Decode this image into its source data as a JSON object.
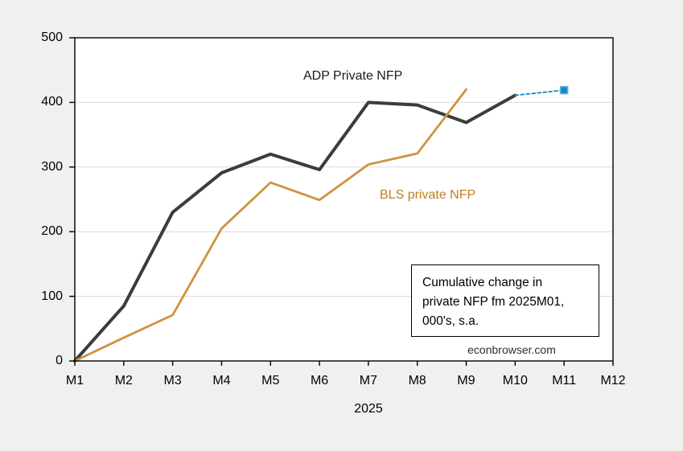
{
  "chart_data": {
    "type": "line",
    "x": [
      "M1",
      "M2",
      "M3",
      "M4",
      "M5",
      "M6",
      "M7",
      "M8",
      "M9",
      "M10",
      "M11",
      "M12"
    ],
    "xlabel": "2025",
    "ylim": [
      0,
      500
    ],
    "yticks": [
      0,
      100,
      200,
      300,
      400,
      500
    ],
    "grid": "horizontal-only",
    "page_bg": "#f0f0f0",
    "plot_bg": "#ffffff",
    "grid_color": "#d9d9d9",
    "frame_color": "#000000",
    "series": [
      {
        "name": "ADP Private NFP",
        "color": "#3c3c3c",
        "width": 4,
        "dash": "",
        "marker": "",
        "values": [
          0,
          85,
          230,
          291,
          320,
          296,
          400,
          396,
          369,
          411,
          null,
          null
        ]
      },
      {
        "name": "BLS private NFP",
        "color": "#d0923f",
        "width": 2.8,
        "dash": "",
        "marker": "",
        "values": [
          0,
          36,
          71,
          205,
          276,
          249,
          304,
          321,
          420,
          null,
          null,
          null
        ]
      },
      {
        "name": "",
        "color": "#1789c6",
        "width": 1.8,
        "dash": "4 3",
        "marker": "square",
        "marker_fill": "#1789c6",
        "marker_stroke": "#6fb3dc",
        "values": [
          null,
          null,
          null,
          null,
          null,
          null,
          null,
          null,
          null,
          411,
          419,
          null
        ]
      }
    ],
    "annotation": {
      "lines": [
        "Cumulative change in",
        "private NFP fm 2025M01,",
        "000's, s.a."
      ]
    },
    "watermark": "econbrowser.com"
  }
}
